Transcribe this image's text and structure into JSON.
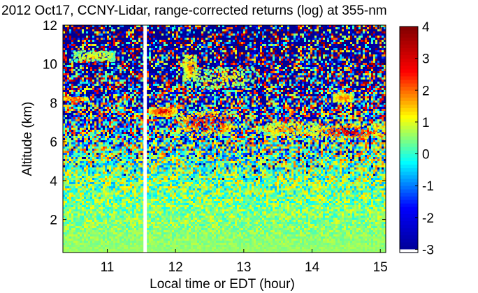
{
  "chart_data": {
    "type": "heatmap",
    "title": "2012 Oct17, CCNY-Lidar, range-corrected returns (log) at 355-nm",
    "xlabel": "Local time or EDT (hour)",
    "ylabel": "Altitude (km)",
    "xlim": [
      10.35,
      15.08
    ],
    "ylim": [
      0.3,
      12
    ],
    "x_ticks": [
      11,
      12,
      13,
      14,
      15
    ],
    "y_ticks": [
      2,
      4,
      6,
      8,
      10,
      12
    ],
    "colorbar": {
      "range": [
        -3.1,
        4
      ],
      "ticks": [
        -3,
        -2,
        -1,
        0,
        1,
        2,
        3,
        4
      ],
      "colormap": "jet",
      "stops": [
        "#00008f",
        "#0000ff",
        "#00ffff",
        "#ffff00",
        "#ff0000",
        "#800000"
      ]
    },
    "data_gap": {
      "x": [
        11.53,
        11.58
      ]
    },
    "background": {
      "near_surface_value": 0.6,
      "clear_air_value": 0.2,
      "noise_onset_km": 4
    },
    "layers": [
      {
        "x": [
          10.35,
          10.7
        ],
        "y": [
          8.2,
          8.3
        ],
        "value": 3.0
      },
      {
        "x": [
          10.5,
          11.1
        ],
        "y": [
          10.2,
          10.7
        ],
        "value": 1.3
      },
      {
        "x": [
          11.6,
          12.0
        ],
        "y": [
          7.4,
          7.8
        ],
        "value": 3.2
      },
      {
        "x": [
          12.0,
          12.9
        ],
        "y": [
          6.4,
          7.6
        ],
        "value": 3.2
      },
      {
        "x": [
          12.1,
          12.3
        ],
        "y": [
          9.2,
          10.5
        ],
        "value": 2.0
      },
      {
        "x": [
          12.3,
          13.2
        ],
        "y": [
          8.8,
          9.9
        ],
        "value": 1.2
      },
      {
        "x": [
          13.2,
          14.1
        ],
        "y": [
          6.4,
          7.0
        ],
        "value": 2.0
      },
      {
        "x": [
          14.0,
          15.08
        ],
        "y": [
          6.2,
          6.9
        ],
        "value": 3.3
      },
      {
        "x": [
          14.3,
          14.6
        ],
        "y": [
          8.1,
          8.5
        ],
        "value": 2.5
      }
    ]
  }
}
